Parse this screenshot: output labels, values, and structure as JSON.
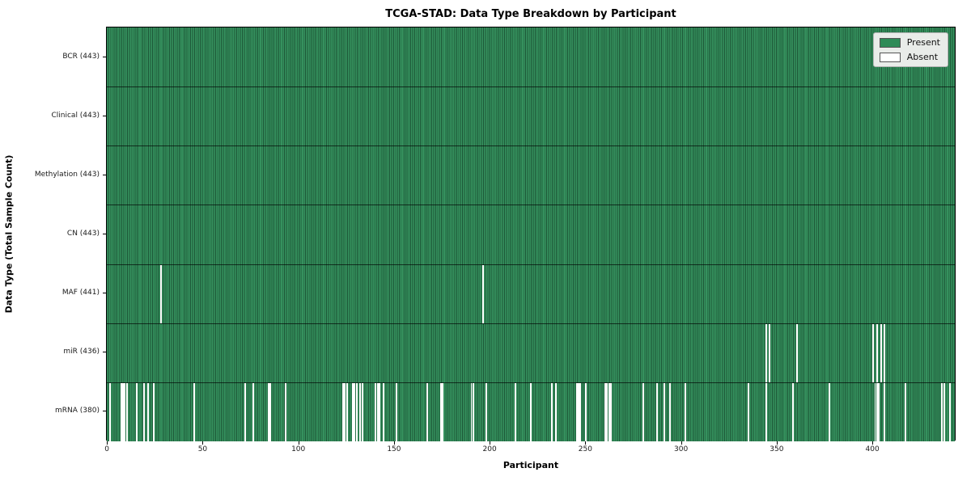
{
  "figure_title": "TCGA-STAD: Data Type Breakdown by Participant",
  "chart_data": {
    "type": "heatmap",
    "title": "TCGA-STAD: Data Type Breakdown by Participant",
    "xlabel": "Participant",
    "ylabel": "Data Type (Total Sample Count)",
    "n_participants": 443,
    "xlim": [
      -0.5,
      443.5
    ],
    "x_ticks": [
      0,
      50,
      100,
      150,
      200,
      250,
      300,
      350,
      400
    ],
    "grid": false,
    "legend": {
      "position": "upper right",
      "entries": [
        {
          "label": "Present",
          "color": "#2e8b57"
        },
        {
          "label": "Absent",
          "color": "#ffffff"
        }
      ]
    },
    "colors": {
      "present_fill": "#2e8b57",
      "bar_edge": "#1d5737",
      "absent_fill": "#ffffff",
      "legend_bg": "#e9ece9"
    },
    "rows": [
      {
        "label": "BCR (443)",
        "name": "BCR",
        "total": 443,
        "absent_participants": []
      },
      {
        "label": "Clinical (443)",
        "name": "Clinical",
        "total": 443,
        "absent_participants": []
      },
      {
        "label": "Methylation (443)",
        "name": "Methylation",
        "total": 443,
        "absent_participants": []
      },
      {
        "label": "CN (443)",
        "name": "CN",
        "total": 443,
        "absent_participants": []
      },
      {
        "label": "MAF (441)",
        "name": "MAF",
        "total": 441,
        "absent_participants": [
          28,
          196
        ]
      },
      {
        "label": "miR (436)",
        "name": "miR",
        "total": 436,
        "absent_participants": [
          344,
          346,
          360,
          400,
          402,
          404,
          406
        ]
      },
      {
        "label": "mRNA (380)",
        "name": "mRNA",
        "total": 380,
        "absent_participants": [
          1,
          7,
          8,
          9,
          10,
          15,
          19,
          21,
          24,
          45,
          72,
          76,
          84,
          85,
          93,
          123,
          124,
          125,
          128,
          129,
          130,
          132,
          133,
          140,
          141,
          142,
          144,
          151,
          167,
          174,
          175,
          190,
          191,
          198,
          213,
          221,
          232,
          234,
          245,
          246,
          247,
          250,
          260,
          261,
          262,
          263,
          280,
          287,
          291,
          294,
          302,
          335,
          344,
          358,
          377,
          401,
          402,
          403,
          406,
          417,
          436,
          437,
          440
        ]
      }
    ]
  }
}
